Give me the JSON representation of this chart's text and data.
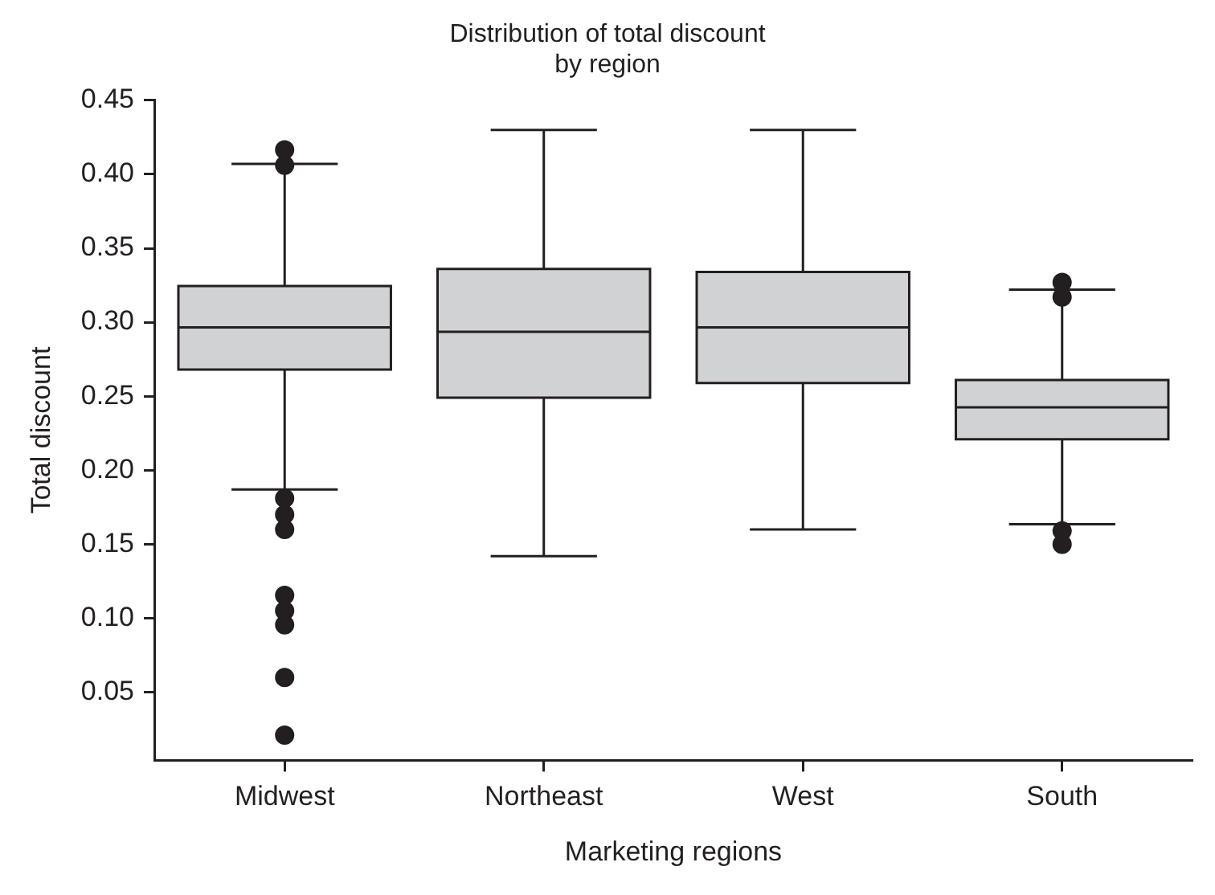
{
  "chart_data": {
    "type": "box",
    "title": "Distribution of total discount\nby region",
    "xlabel": "Marketing regions",
    "ylabel": "Total discount",
    "categories": [
      "Midwest",
      "Northeast",
      "West",
      "South"
    ],
    "color": "#d1d2d4",
    "boxes": [
      {
        "low": 0.187,
        "q1": 0.268,
        "median": 0.2965,
        "q3": 0.3245,
        "high": 0.407,
        "outliers": [
          0.4165,
          0.406,
          0.181,
          0.17,
          0.16,
          0.1155,
          0.105,
          0.0955,
          0.06,
          0.021
        ]
      },
      {
        "low": 0.142,
        "q1": 0.249,
        "median": 0.2935,
        "q3": 0.336,
        "high": 0.43
      },
      {
        "low": 0.16,
        "q1": 0.259,
        "median": 0.2965,
        "q3": 0.334,
        "high": 0.43
      },
      {
        "low": 0.1635,
        "q1": 0.221,
        "median": 0.2425,
        "q3": 0.261,
        "high": 0.322,
        "outliers": [
          0.327,
          0.317,
          0.159,
          0.15
        ]
      }
    ],
    "ylim": [
      0.004,
      0.45
    ],
    "yticks": [
      {
        "value": 0.05,
        "label": "0.05"
      },
      {
        "value": 0.1,
        "label": "0.10"
      },
      {
        "value": 0.15,
        "label": "0.15"
      },
      {
        "value": 0.2,
        "label": "0.20"
      },
      {
        "value": 0.25,
        "label": "0.25"
      },
      {
        "value": 0.3,
        "label": "0.30"
      },
      {
        "value": 0.35,
        "label": "0.35"
      },
      {
        "value": 0.4,
        "label": "0.40"
      },
      {
        "value": 0.45,
        "label": "0.45"
      }
    ],
    "grid": false,
    "legend": false,
    "marker": "circle"
  }
}
